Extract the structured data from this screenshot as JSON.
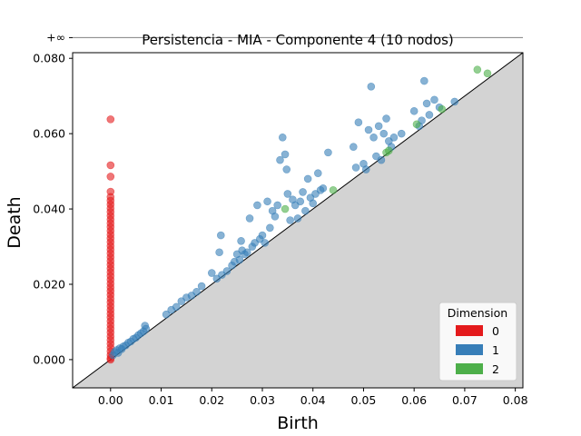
{
  "chart_data": {
    "type": "scatter",
    "title": "Persistencia - MIA - Componente 4 (10 nodos)",
    "xlabel": "Birth",
    "ylabel": "Death",
    "xlim": [
      -0.0075,
      0.0815
    ],
    "ylim": [
      -0.0075,
      0.0815
    ],
    "grid": false,
    "infinity_label": "+∞",
    "infinity_value": 0.0855,
    "x_ticks": [
      {
        "value": 0.0,
        "label": "0.00"
      },
      {
        "value": 0.01,
        "label": "0.01"
      },
      {
        "value": 0.02,
        "label": "0.02"
      },
      {
        "value": 0.03,
        "label": "0.03"
      },
      {
        "value": 0.04,
        "label": "0.04"
      },
      {
        "value": 0.05,
        "label": "0.05"
      },
      {
        "value": 0.06,
        "label": "0.06"
      },
      {
        "value": 0.07,
        "label": "0.07"
      },
      {
        "value": 0.08,
        "label": "0.08"
      }
    ],
    "y_ticks": [
      {
        "value": 0.0,
        "label": "0.000"
      },
      {
        "value": 0.02,
        "label": "0.020"
      },
      {
        "value": 0.04,
        "label": "0.040"
      },
      {
        "value": 0.06,
        "label": "0.060"
      },
      {
        "value": 0.08,
        "label": "0.080"
      }
    ],
    "legend": {
      "title": "Dimension",
      "placement": "lower-right",
      "entries": [
        {
          "label": "0",
          "color": "#e41a1c"
        },
        {
          "label": "1",
          "color": "#377eb8"
        },
        {
          "label": "2",
          "color": "#4daf4a"
        }
      ]
    },
    "series": [
      {
        "name": "0",
        "color": "#e41a1c",
        "points": [
          [
            0,
            0.0855
          ],
          [
            0,
            0.0638
          ],
          [
            0,
            0.0516
          ],
          [
            0,
            0.0486
          ],
          [
            0,
            0.0446
          ],
          [
            0,
            0.0432
          ],
          [
            0,
            0.0422
          ],
          [
            0,
            0.0412
          ],
          [
            0,
            0.0402
          ],
          [
            0,
            0.0392
          ],
          [
            0,
            0.0382
          ],
          [
            0,
            0.0372
          ],
          [
            0,
            0.0362
          ],
          [
            0,
            0.0352
          ],
          [
            0,
            0.0342
          ],
          [
            0,
            0.0332
          ],
          [
            0,
            0.0322
          ],
          [
            0,
            0.0312
          ],
          [
            0,
            0.0302
          ],
          [
            0,
            0.0292
          ],
          [
            0,
            0.0282
          ],
          [
            0,
            0.0272
          ],
          [
            0,
            0.0262
          ],
          [
            0,
            0.0252
          ],
          [
            0,
            0.0242
          ],
          [
            0,
            0.0232
          ],
          [
            0,
            0.0222
          ],
          [
            0,
            0.0212
          ],
          [
            0,
            0.0202
          ],
          [
            0,
            0.0192
          ],
          [
            0,
            0.0182
          ],
          [
            0,
            0.0172
          ],
          [
            0,
            0.0162
          ],
          [
            0,
            0.0152
          ],
          [
            0,
            0.0142
          ],
          [
            0,
            0.0132
          ],
          [
            0,
            0.0122
          ],
          [
            0,
            0.0112
          ],
          [
            0,
            0.0102
          ],
          [
            0,
            0.0092
          ],
          [
            0,
            0.0082
          ],
          [
            0,
            0.0072
          ],
          [
            0,
            0.0062
          ],
          [
            0,
            0.0052
          ],
          [
            0,
            0.0042
          ],
          [
            0,
            0.0032
          ],
          [
            0,
            0.0022
          ],
          [
            0,
            0.0012
          ],
          [
            0,
            0.0004
          ],
          [
            0,
            0.0
          ]
        ]
      },
      {
        "name": "1",
        "color": "#377eb8",
        "points": [
          [
            0.0005,
            0.0012
          ],
          [
            0.0008,
            0.002
          ],
          [
            0.0012,
            0.0025
          ],
          [
            0.0015,
            0.0018
          ],
          [
            0.0018,
            0.003
          ],
          [
            0.0022,
            0.0028
          ],
          [
            0.0025,
            0.0035
          ],
          [
            0.003,
            0.0038
          ],
          [
            0.0035,
            0.0045
          ],
          [
            0.004,
            0.0048
          ],
          [
            0.0045,
            0.0055
          ],
          [
            0.005,
            0.0058
          ],
          [
            0.0055,
            0.0065
          ],
          [
            0.006,
            0.007
          ],
          [
            0.0065,
            0.0075
          ],
          [
            0.0068,
            0.009
          ],
          [
            0.007,
            0.0082
          ],
          [
            0.011,
            0.012
          ],
          [
            0.012,
            0.0132
          ],
          [
            0.013,
            0.014
          ],
          [
            0.014,
            0.0155
          ],
          [
            0.015,
            0.0165
          ],
          [
            0.016,
            0.017
          ],
          [
            0.017,
            0.018
          ],
          [
            0.018,
            0.0195
          ],
          [
            0.02,
            0.023
          ],
          [
            0.021,
            0.0215
          ],
          [
            0.0215,
            0.0285
          ],
          [
            0.0218,
            0.033
          ],
          [
            0.022,
            0.0225
          ],
          [
            0.023,
            0.0235
          ],
          [
            0.024,
            0.025
          ],
          [
            0.0245,
            0.026
          ],
          [
            0.025,
            0.028
          ],
          [
            0.0255,
            0.0265
          ],
          [
            0.0258,
            0.0315
          ],
          [
            0.026,
            0.029
          ],
          [
            0.0265,
            0.028
          ],
          [
            0.027,
            0.0285
          ],
          [
            0.0275,
            0.0375
          ],
          [
            0.028,
            0.03
          ],
          [
            0.0285,
            0.031
          ],
          [
            0.029,
            0.041
          ],
          [
            0.0295,
            0.032
          ],
          [
            0.03,
            0.033
          ],
          [
            0.0305,
            0.031
          ],
          [
            0.031,
            0.042
          ],
          [
            0.0315,
            0.035
          ],
          [
            0.032,
            0.0395
          ],
          [
            0.0325,
            0.038
          ],
          [
            0.033,
            0.041
          ],
          [
            0.0335,
            0.053
          ],
          [
            0.034,
            0.059
          ],
          [
            0.0345,
            0.0545
          ],
          [
            0.0348,
            0.0505
          ],
          [
            0.035,
            0.044
          ],
          [
            0.0355,
            0.037
          ],
          [
            0.036,
            0.0425
          ],
          [
            0.0365,
            0.041
          ],
          [
            0.037,
            0.0375
          ],
          [
            0.0375,
            0.042
          ],
          [
            0.038,
            0.0445
          ],
          [
            0.0385,
            0.0395
          ],
          [
            0.039,
            0.048
          ],
          [
            0.0395,
            0.043
          ],
          [
            0.04,
            0.0415
          ],
          [
            0.0405,
            0.044
          ],
          [
            0.041,
            0.0495
          ],
          [
            0.0415,
            0.045
          ],
          [
            0.042,
            0.0455
          ],
          [
            0.043,
            0.055
          ],
          [
            0.048,
            0.0565
          ],
          [
            0.0485,
            0.051
          ],
          [
            0.049,
            0.063
          ],
          [
            0.05,
            0.052
          ],
          [
            0.0505,
            0.0505
          ],
          [
            0.051,
            0.061
          ],
          [
            0.0515,
            0.0725
          ],
          [
            0.052,
            0.059
          ],
          [
            0.0525,
            0.054
          ],
          [
            0.053,
            0.062
          ],
          [
            0.0535,
            0.053
          ],
          [
            0.054,
            0.06
          ],
          [
            0.0545,
            0.064
          ],
          [
            0.055,
            0.058
          ],
          [
            0.0555,
            0.0565
          ],
          [
            0.056,
            0.059
          ],
          [
            0.0575,
            0.06
          ],
          [
            0.06,
            0.066
          ],
          [
            0.061,
            0.062
          ],
          [
            0.0615,
            0.0635
          ],
          [
            0.062,
            0.074
          ],
          [
            0.0625,
            0.068
          ],
          [
            0.063,
            0.065
          ],
          [
            0.064,
            0.069
          ],
          [
            0.065,
            0.067
          ],
          [
            0.068,
            0.0685
          ]
        ]
      },
      {
        "name": "2",
        "color": "#4daf4a",
        "points": [
          [
            0.0345,
            0.04
          ],
          [
            0.044,
            0.045
          ],
          [
            0.0545,
            0.055
          ],
          [
            0.055,
            0.0555
          ],
          [
            0.0605,
            0.0625
          ],
          [
            0.0655,
            0.0665
          ],
          [
            0.0725,
            0.077
          ],
          [
            0.0745,
            0.076
          ]
        ]
      }
    ]
  }
}
